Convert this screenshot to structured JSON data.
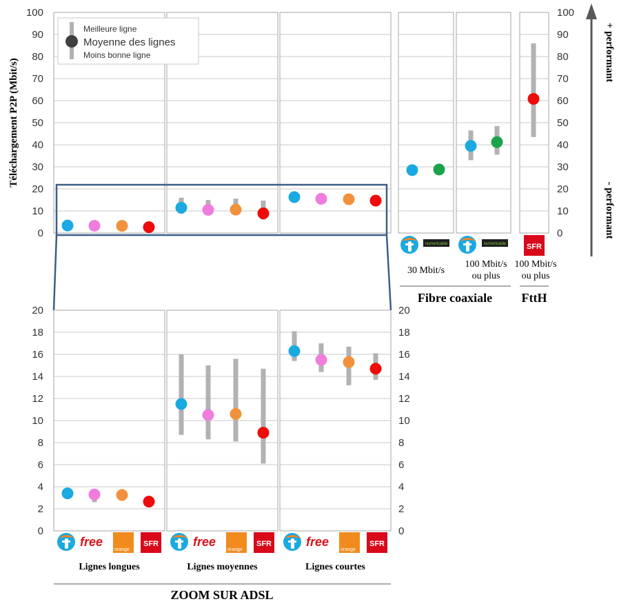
{
  "colors": {
    "bouygues": "#1ba9e1",
    "free": "#f07ddd",
    "orange": "#f2913d",
    "sfr": "#ee0b0b",
    "numericable": "#1aa34a",
    "range": "#b2b2b2",
    "zoom_box": "#3b5e8a",
    "grid": "#c8c8c8"
  },
  "operators": {
    "bouygues": {
      "icon": "bouygues-logo-icon"
    },
    "free": {
      "label": "free",
      "icon": "free-logo-icon"
    },
    "orange": {
      "label": "orange",
      "icon": "orange-logo-icon"
    },
    "sfr": {
      "label": "SFR",
      "icon": "sfr-logo-icon"
    },
    "numericable": {
      "label": "numericable",
      "icon": "numericable-logo-icon"
    }
  },
  "labels": {
    "right_arrow_top": "+ performant",
    "right_arrow_bottom": "- performant",
    "fibre_group": "Fibre coaxiale",
    "ftth_group": "FttH",
    "zoom_title": "ZOOM SUR ADSL"
  },
  "legend": {
    "best": "Meilleure ligne",
    "mean": "Moyenne des lignes",
    "worst": "Moins bonne ligne"
  },
  "chart_data": [
    {
      "type": "scatter",
      "title": "",
      "ylabel": "Téléchargement P2P (Mbit/s)",
      "ylim": [
        0,
        100
      ],
      "yticks": [
        0,
        10,
        20,
        30,
        40,
        50,
        60,
        70,
        80,
        90,
        100
      ],
      "legend_placement": "top-left",
      "panels": [
        {
          "label": "",
          "series": [
            {
              "operator": "bouygues",
              "mean": 3.4,
              "max": 3.6,
              "min": 3.1
            },
            {
              "operator": "free",
              "mean": 3.3,
              "max": 3.5,
              "min": 2.6
            },
            {
              "operator": "orange",
              "mean": 3.25,
              "max": 3.35,
              "min": 3.1
            },
            {
              "operator": "sfr",
              "mean": 2.65,
              "max": 2.75,
              "min": 2.5
            }
          ]
        },
        {
          "label": "",
          "series": [
            {
              "operator": "bouygues",
              "mean": 11.5,
              "max": 16,
              "min": 8.7
            },
            {
              "operator": "free",
              "mean": 10.5,
              "max": 15,
              "min": 8.3
            },
            {
              "operator": "orange",
              "mean": 10.6,
              "max": 15.6,
              "min": 8.1
            },
            {
              "operator": "sfr",
              "mean": 8.9,
              "max": 14.7,
              "min": 6.1
            }
          ]
        },
        {
          "label": "",
          "series": [
            {
              "operator": "bouygues",
              "mean": 16.3,
              "max": 18.1,
              "min": 15.4
            },
            {
              "operator": "free",
              "mean": 15.5,
              "max": 17,
              "min": 14.4
            },
            {
              "operator": "orange",
              "mean": 15.3,
              "max": 16.7,
              "min": 13.2
            },
            {
              "operator": "sfr",
              "mean": 14.7,
              "max": 16.1,
              "min": 13.7
            }
          ]
        },
        {
          "label": "30 Mbit/s",
          "series": [
            {
              "operator": "bouygues",
              "mean": 28.5,
              "max": 29,
              "min": 28
            },
            {
              "operator": "numericable",
              "mean": 28.8,
              "max": 29.3,
              "min": 28.3
            }
          ]
        },
        {
          "label": "100 Mbit/s ou plus",
          "series": [
            {
              "operator": "bouygues",
              "mean": 39.5,
              "max": 46.5,
              "min": 33
            },
            {
              "operator": "numericable",
              "mean": 41.2,
              "max": 48.5,
              "min": 35.5
            }
          ]
        },
        {
          "label": "100 Mbit/s ou plus",
          "series": [
            {
              "operator": "sfr",
              "mean": 60.8,
              "max": 86,
              "min": 43.5
            }
          ]
        }
      ]
    },
    {
      "type": "scatter",
      "title": "",
      "ylabel": "",
      "ylim": [
        0,
        20
      ],
      "yticks": [
        0,
        2,
        4,
        6,
        8,
        10,
        12,
        14,
        16,
        18,
        20
      ],
      "panels": [
        {
          "label": "Lignes longues",
          "series": [
            {
              "operator": "bouygues",
              "mean": 3.4,
              "max": 3.6,
              "min": 3.1
            },
            {
              "operator": "free",
              "mean": 3.3,
              "max": 3.5,
              "min": 2.6
            },
            {
              "operator": "orange",
              "mean": 3.25,
              "max": 3.35,
              "min": 3.1
            },
            {
              "operator": "sfr",
              "mean": 2.65,
              "max": 2.75,
              "min": 2.5
            }
          ]
        },
        {
          "label": "Lignes moyennes",
          "series": [
            {
              "operator": "bouygues",
              "mean": 11.5,
              "max": 16,
              "min": 8.7
            },
            {
              "operator": "free",
              "mean": 10.5,
              "max": 15,
              "min": 8.3
            },
            {
              "operator": "orange",
              "mean": 10.6,
              "max": 15.6,
              "min": 8.1
            },
            {
              "operator": "sfr",
              "mean": 8.9,
              "max": 14.7,
              "min": 6.1
            }
          ]
        },
        {
          "label": "Lignes courtes",
          "series": [
            {
              "operator": "bouygues",
              "mean": 16.3,
              "max": 18.1,
              "min": 15.4
            },
            {
              "operator": "free",
              "mean": 15.5,
              "max": 17,
              "min": 14.4
            },
            {
              "operator": "orange",
              "mean": 15.3,
              "max": 16.7,
              "min": 13.2
            },
            {
              "operator": "sfr",
              "mean": 14.7,
              "max": 16.1,
              "min": 13.7
            }
          ]
        }
      ]
    }
  ]
}
